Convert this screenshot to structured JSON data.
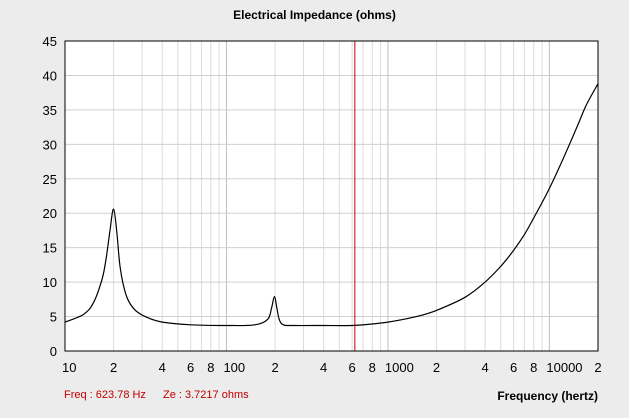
{
  "chart_data": {
    "type": "line",
    "title": "Electrical Impedance (ohms)",
    "xlabel": "Frequency (hertz)",
    "ylabel": "",
    "x_scale": "log",
    "xlim": [
      10,
      20000
    ],
    "ylim": [
      0,
      45
    ],
    "y_ticks": [
      0,
      5,
      10,
      15,
      20,
      25,
      30,
      35,
      40,
      45
    ],
    "x_tick_labels": [
      {
        "x": 10,
        "label": "10"
      },
      {
        "x": 20,
        "label": "2"
      },
      {
        "x": 40,
        "label": "4"
      },
      {
        "x": 60,
        "label": "6"
      },
      {
        "x": 80,
        "label": "8"
      },
      {
        "x": 100,
        "label": "100"
      },
      {
        "x": 200,
        "label": "2"
      },
      {
        "x": 400,
        "label": "4"
      },
      {
        "x": 600,
        "label": "6"
      },
      {
        "x": 800,
        "label": "8"
      },
      {
        "x": 1000,
        "label": "1000"
      },
      {
        "x": 2000,
        "label": "2"
      },
      {
        "x": 4000,
        "label": "4"
      },
      {
        "x": 6000,
        "label": "6"
      },
      {
        "x": 8000,
        "label": "8"
      },
      {
        "x": 10000,
        "label": "10000"
      },
      {
        "x": 20000,
        "label": "2"
      }
    ],
    "grid": true,
    "line_color": "#000000",
    "cursor_color": "#cc0000",
    "cursor_x": 623.78,
    "series": [
      {
        "x": [
          10,
          13,
          15,
          17,
          18,
          19,
          20,
          21,
          22,
          24,
          27,
          32,
          40,
          60,
          100,
          150,
          180,
          190,
          198,
          205,
          212,
          225,
          260,
          400,
          623.78,
          1000,
          1500,
          2000,
          3000,
          4000,
          5000,
          6000,
          7000,
          8000,
          10000,
          12000,
          15000,
          17000,
          20000
        ],
        "y": [
          4.2,
          5.3,
          7.0,
          10.5,
          13.5,
          17.5,
          20.6,
          17.0,
          12.0,
          8.0,
          6.0,
          4.9,
          4.2,
          3.8,
          3.7,
          3.8,
          4.6,
          6.2,
          7.9,
          6.3,
          4.6,
          3.8,
          3.7,
          3.7,
          3.72,
          4.2,
          5.0,
          5.9,
          7.8,
          10.0,
          12.3,
          14.6,
          16.9,
          19.3,
          23.6,
          27.6,
          32.8,
          35.8,
          38.8
        ]
      }
    ]
  },
  "readout": {
    "freq": "Freq : 623.78 Hz",
    "ze": "Ze : 3.7217 ohms"
  }
}
